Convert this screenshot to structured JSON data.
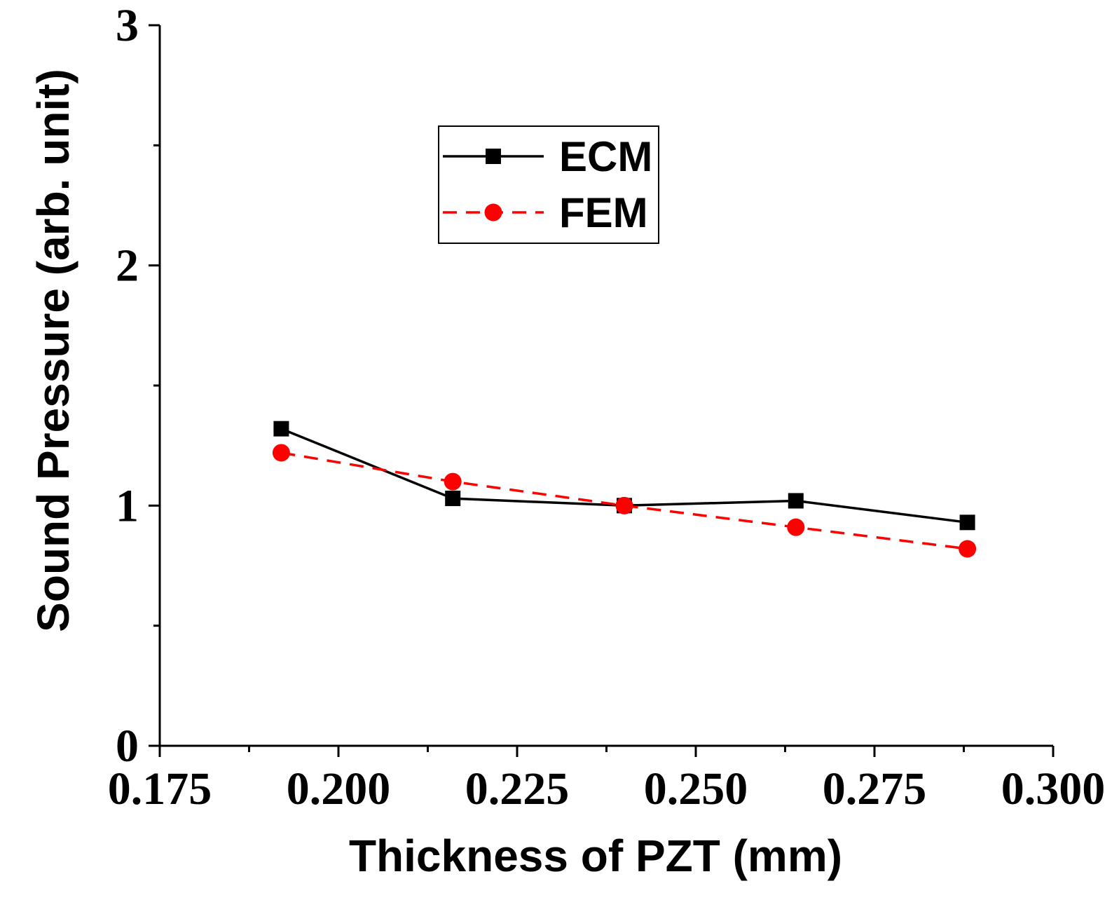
{
  "chart_data": {
    "type": "line",
    "title": "",
    "xlabel": "Thickness of PZT (mm)",
    "ylabel": "Sound Pressure (arb. unit)",
    "xlim": [
      0.175,
      0.3
    ],
    "ylim": [
      0,
      3
    ],
    "xticks": [
      0.175,
      0.2,
      0.225,
      0.25,
      0.275,
      0.3
    ],
    "xtick_labels": [
      "0.175",
      "0.200",
      "0.225",
      "0.250",
      "0.275",
      "0.300"
    ],
    "x_minor_ticks": [
      0.1875,
      0.2125,
      0.2375,
      0.2625,
      0.2875
    ],
    "yticks": [
      0,
      1,
      2,
      3
    ],
    "ytick_labels": [
      "0",
      "1",
      "2",
      "3"
    ],
    "y_minor_ticks": [
      0.5,
      1.5,
      2.5
    ],
    "grid": false,
    "legend_position": "upper-center",
    "series": [
      {
        "name": "ECM",
        "color": "#000000",
        "line_style": "solid",
        "marker": "square",
        "x": [
          0.192,
          0.216,
          0.24,
          0.264,
          0.288
        ],
        "y": [
          1.32,
          1.03,
          1.0,
          1.02,
          0.93
        ]
      },
      {
        "name": "FEM",
        "color": "#ff0000",
        "line_style": "dashed",
        "marker": "circle",
        "x": [
          0.192,
          0.216,
          0.24,
          0.264,
          0.288
        ],
        "y": [
          1.22,
          1.1,
          1.0,
          0.91,
          0.82
        ]
      }
    ]
  }
}
